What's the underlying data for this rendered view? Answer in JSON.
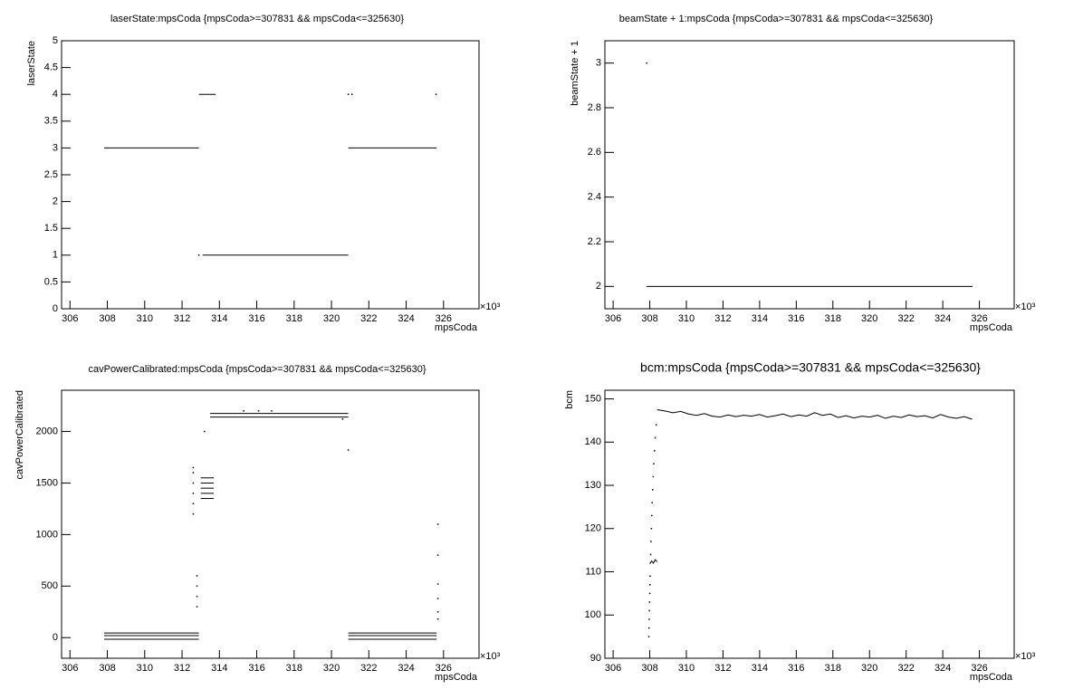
{
  "chart_data": [
    {
      "type": "scatter",
      "title": "laserState:mpsCoda {mpsCoda>=307831 && mpsCoda<=325630}",
      "x_label": "mpsCoda",
      "y_label": "laserState",
      "x_exponent_label": "×10³",
      "xlim": [
        305.55,
        327.9
      ],
      "xticks": [
        306,
        308,
        310,
        312,
        314,
        316,
        318,
        320,
        322,
        324,
        326
      ],
      "ylim": [
        0,
        5
      ],
      "yticks": [
        0,
        0.5,
        1,
        1.5,
        2,
        2.5,
        3,
        3.5,
        4,
        4.5,
        5
      ],
      "series": [
        {
          "style": "line",
          "color": "#000000",
          "x": [
            307.831,
            312.9
          ],
          "values": [
            3,
            3
          ]
        },
        {
          "style": "line",
          "color": "#000000",
          "x": [
            312.9,
            313.8
          ],
          "values": [
            4,
            4
          ]
        },
        {
          "style": "line",
          "color": "#000000",
          "x": [
            313.1,
            320.9
          ],
          "values": [
            1,
            1
          ]
        },
        {
          "style": "line",
          "color": "#000000",
          "x": [
            320.9,
            325.63
          ],
          "values": [
            3,
            3
          ]
        },
        {
          "style": "dots",
          "color": "#000000",
          "x": [
            312.9,
            320.9,
            321.1,
            325.6
          ],
          "values": [
            1,
            4,
            4,
            4
          ]
        }
      ]
    },
    {
      "type": "scatter",
      "title": "beamState + 1:mpsCoda {mpsCoda>=307831 && mpsCoda<=325630}",
      "x_label": "mpsCoda",
      "y_label": "beamState + 1",
      "x_exponent_label": "×10³",
      "xlim": [
        305.55,
        327.9
      ],
      "xticks": [
        306,
        308,
        310,
        312,
        314,
        316,
        318,
        320,
        322,
        324,
        326
      ],
      "ylim": [
        1.9,
        3.1
      ],
      "yticks": [
        2,
        2.2,
        2.4,
        2.6,
        2.8,
        3
      ],
      "series": [
        {
          "style": "dots",
          "color": "#000000",
          "x": [
            307.831
          ],
          "values": [
            3
          ]
        },
        {
          "style": "line",
          "color": "#000000",
          "x": [
            307.831,
            325.63
          ],
          "values": [
            2,
            2
          ]
        }
      ]
    },
    {
      "type": "scatter",
      "title": "cavPowerCalibrated:mpsCoda {mpsCoda>=307831 && mpsCoda<=325630}",
      "x_label": "mpsCoda",
      "y_label": "cavPowerCalibrated",
      "x_exponent_label": "×10³",
      "xlim": [
        305.55,
        327.9
      ],
      "xticks": [
        306,
        308,
        310,
        312,
        314,
        316,
        318,
        320,
        322,
        324,
        326
      ],
      "ylim": [
        -200,
        2400
      ],
      "yticks": [
        0,
        500,
        1000,
        1500,
        2000
      ],
      "series": [
        {
          "style": "line",
          "color": "#000000",
          "x": [
            307.831,
            312.9
          ],
          "values": [
            45,
            45
          ]
        },
        {
          "style": "line",
          "color": "#000000",
          "x": [
            307.831,
            312.9
          ],
          "values": [
            20,
            20
          ]
        },
        {
          "style": "line",
          "color": "#000000",
          "x": [
            307.831,
            312.9
          ],
          "values": [
            -15,
            -15
          ]
        },
        {
          "style": "line",
          "color": "#000000",
          "x": [
            320.9,
            325.63
          ],
          "values": [
            45,
            45
          ]
        },
        {
          "style": "line",
          "color": "#000000",
          "x": [
            320.9,
            325.63
          ],
          "values": [
            20,
            20
          ]
        },
        {
          "style": "line",
          "color": "#000000",
          "x": [
            320.9,
            325.63
          ],
          "values": [
            -15,
            -15
          ]
        },
        {
          "style": "line",
          "color": "#000000",
          "x": [
            313.5,
            320.9
          ],
          "values": [
            2140,
            2140
          ]
        },
        {
          "style": "line",
          "color": "#000000",
          "x": [
            313.5,
            320.9
          ],
          "values": [
            2175,
            2175
          ]
        },
        {
          "style": "line",
          "color": "#000000",
          "x": [
            313.0,
            313.7
          ],
          "values": [
            1350,
            1350
          ]
        },
        {
          "style": "line",
          "color": "#000000",
          "x": [
            313.0,
            313.7
          ],
          "values": [
            1400,
            1400
          ]
        },
        {
          "style": "line",
          "color": "#000000",
          "x": [
            313.0,
            313.7
          ],
          "values": [
            1450,
            1450
          ]
        },
        {
          "style": "line",
          "color": "#000000",
          "x": [
            313.0,
            313.7
          ],
          "values": [
            1500,
            1500
          ]
        },
        {
          "style": "line",
          "color": "#000000",
          "x": [
            313.0,
            313.7
          ],
          "values": [
            1550,
            1550
          ]
        },
        {
          "style": "dots",
          "color": "#000000",
          "x": [
            312.6,
            312.6,
            312.6,
            312.6,
            312.6,
            312.6,
            312.8,
            312.8,
            312.8,
            312.8,
            313.2,
            315.3,
            316.1,
            316.8,
            320.6,
            320.9,
            325.7,
            325.7,
            325.7,
            325.7,
            325.7,
            325.7
          ],
          "values": [
            1200,
            1300,
            1400,
            1500,
            1600,
            1650,
            600,
            500,
            400,
            300,
            2000,
            2200,
            2200,
            2200,
            2120,
            1820,
            1100,
            800,
            520,
            380,
            250,
            180
          ]
        }
      ]
    },
    {
      "type": "scatter",
      "title": "bcm:mpsCoda {mpsCoda>=307831 && mpsCoda<=325630}",
      "x_label": "mpsCoda",
      "y_label": "bcm",
      "x_exponent_label": "×10³",
      "xlim": [
        305.55,
        327.9
      ],
      "xticks": [
        306,
        308,
        310,
        312,
        314,
        316,
        318,
        320,
        322,
        324,
        326
      ],
      "ylim": [
        90,
        152
      ],
      "yticks": [
        90,
        100,
        110,
        120,
        130,
        140,
        150
      ],
      "series": [
        {
          "style": "dots",
          "color": "#000000",
          "x": [
            307.95,
            307.96,
            307.97,
            307.98,
            307.99,
            308.0,
            308.01,
            308.02,
            308.05,
            308.07,
            308.09,
            308.11,
            308.13,
            308.16,
            308.19,
            308.22,
            308.26,
            308.3,
            308.35
          ],
          "values": [
            95,
            97,
            99,
            101,
            103,
            105,
            107,
            109,
            114,
            117,
            120,
            123,
            126,
            129,
            132,
            135,
            138,
            141,
            144
          ]
        },
        {
          "style": "line",
          "color": "#000000",
          "x": [
            308.0,
            308.1,
            308.2,
            308.3,
            308.4
          ],
          "values": [
            111.8,
            112.5,
            112,
            112.8,
            112.3
          ]
        },
        {
          "style": "line",
          "color": "#000000",
          "x": [
            308.4,
            308.83,
            309.26,
            309.69,
            310.12,
            310.55,
            310.98,
            311.41,
            311.84,
            312.27,
            312.7,
            313.13,
            313.56,
            313.99,
            314.42,
            314.85,
            315.28,
            315.71,
            316.14,
            316.57,
            317,
            317.43,
            317.86,
            318.29,
            318.72,
            319.15,
            319.58,
            320.01,
            320.44,
            320.87,
            321.3,
            321.73,
            322.16,
            322.59,
            323.02,
            323.45,
            323.88,
            324.31,
            324.74,
            325.17,
            325.6
          ],
          "values": [
            147.5,
            147.2,
            146.8,
            147.1,
            146.5,
            146.2,
            146.6,
            146.0,
            145.8,
            146.3,
            145.9,
            146.2,
            146.0,
            146.4,
            145.8,
            146.1,
            146.5,
            145.9,
            146.3,
            146.0,
            146.8,
            146.2,
            146.5,
            145.7,
            146.1,
            145.6,
            146.0,
            145.8,
            146.2,
            145.5,
            146.0,
            145.7,
            146.3,
            145.9,
            146.1,
            145.6,
            146.4,
            145.8,
            145.5,
            145.9,
            145.3
          ]
        }
      ]
    }
  ]
}
